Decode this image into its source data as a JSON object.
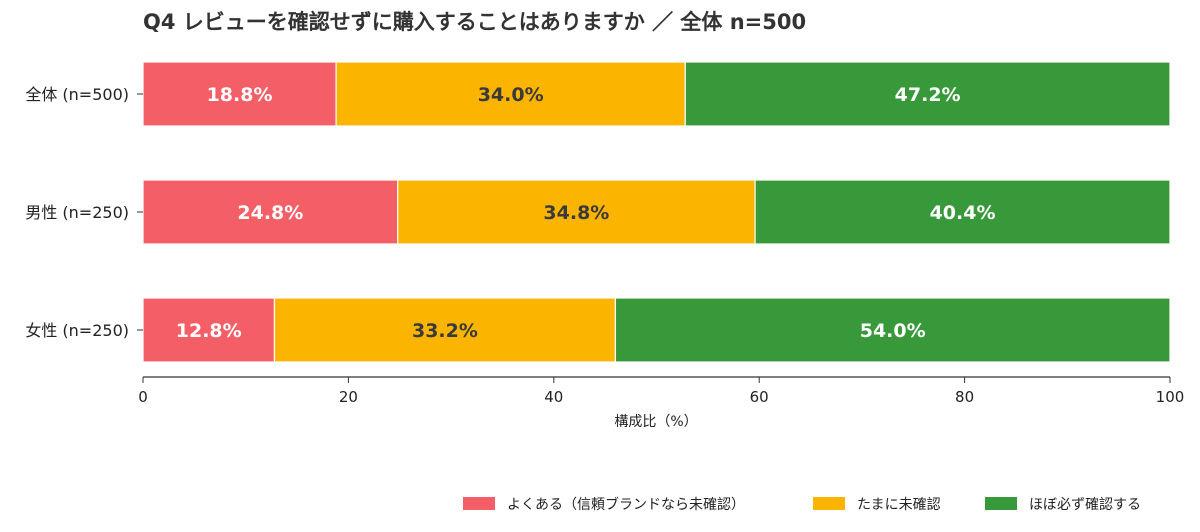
{
  "chart_data": {
    "type": "bar",
    "orientation": "horizontal",
    "stacked": true,
    "title": "Q4 レビューを確認せずに購入することはありますか ／ 全体 n=500",
    "xlabel": "構成比（%）",
    "ylabel": "",
    "xlim": [
      0,
      100
    ],
    "x_ticks": [
      0,
      20,
      40,
      60,
      80,
      100
    ],
    "categories": [
      "全体 (n=500)",
      "男性 (n=250)",
      "女性 (n=250)"
    ],
    "series": [
      {
        "name": "よくある（信頼ブランドなら未確認）",
        "color": "#f45f67",
        "label_color": "#ffffff",
        "values": [
          18.8,
          24.8,
          12.8
        ],
        "labels": [
          "18.8%",
          "24.8%",
          "12.8%"
        ]
      },
      {
        "name": "たまに未確認",
        "color": "#fbb400",
        "label_color": "#3a3a3a",
        "values": [
          34.0,
          34.8,
          33.2
        ],
        "labels": [
          "34.0%",
          "34.8%",
          "33.2%"
        ]
      },
      {
        "name": "ほぼ必ず確認する",
        "color": "#38993a",
        "label_color": "#ffffff",
        "values": [
          47.2,
          40.4,
          54.0
        ],
        "labels": [
          "47.2%",
          "40.4%",
          "54.0%"
        ]
      }
    ],
    "grid": false,
    "legend_position": "bottom-right"
  }
}
